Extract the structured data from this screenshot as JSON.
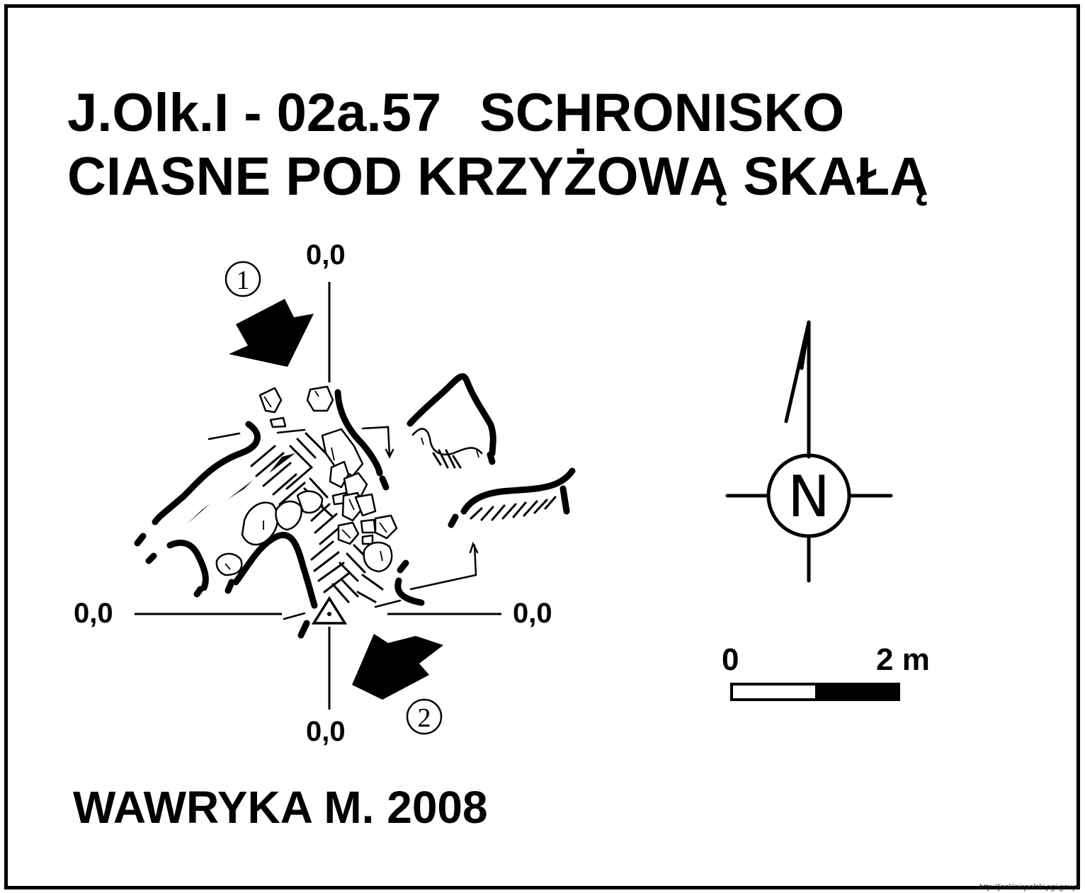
{
  "title": {
    "code": "J.Olk.I - 02a.57",
    "name_line1": "SCHRONISKO",
    "name_line2": "CIASNE POD KRZYŻOWĄ SKAŁĄ"
  },
  "coordinates": {
    "top": "0,0",
    "left": "0,0",
    "right": "0,0",
    "bottom": "0,0"
  },
  "entrances": {
    "first": "1",
    "second": "2"
  },
  "north_arrow": {
    "label": "N"
  },
  "scale_bar": {
    "start_label": "0",
    "end_label": "2 m"
  },
  "author": "WAWRYKA M. 2008",
  "source_url": "http://jaskiniepolski.pgi.gov.pl"
}
